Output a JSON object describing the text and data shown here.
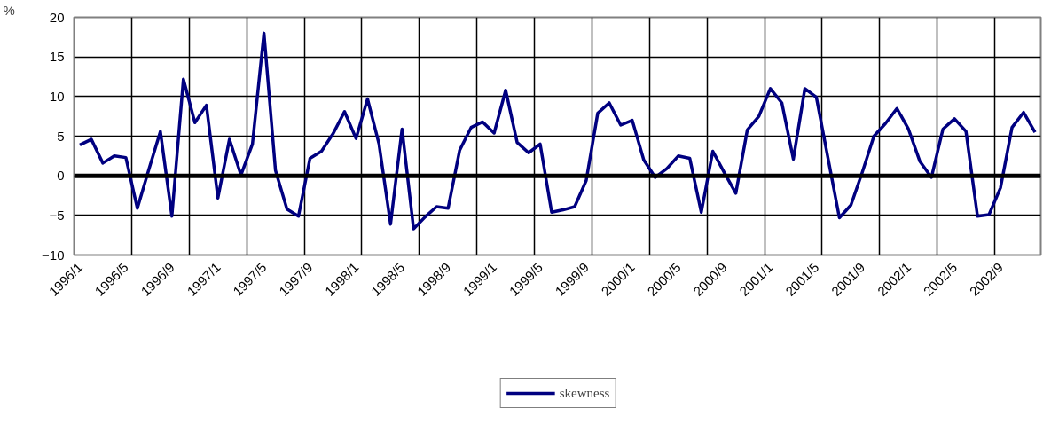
{
  "chart_data": {
    "type": "line",
    "ylabel": "%",
    "categories": [
      "1996/1",
      null,
      null,
      null,
      "1996/5",
      null,
      null,
      null,
      "1996/9",
      null,
      null,
      null,
      "1997/1",
      null,
      null,
      null,
      "1997/5",
      null,
      null,
      null,
      "1997/9",
      null,
      null,
      null,
      "1998/1",
      null,
      null,
      null,
      "1998/5",
      null,
      null,
      null,
      "1998/9",
      null,
      null,
      null,
      "1999/1",
      null,
      null,
      null,
      "1999/5",
      null,
      null,
      null,
      "1999/9",
      null,
      null,
      null,
      "2000/1",
      null,
      null,
      null,
      "2000/5",
      null,
      null,
      null,
      "2000/9",
      null,
      null,
      null,
      "2001/1",
      null,
      null,
      null,
      "2001/5",
      null,
      null,
      null,
      "2001/9",
      null,
      null,
      null,
      "2002/1",
      null,
      null,
      null,
      "2002/5",
      null,
      null,
      null,
      "2002/9",
      null,
      null,
      null
    ],
    "series": [
      {
        "name": "skewness",
        "color": "#000080",
        "values": [
          3.9,
          4.6,
          1.6,
          2.5,
          2.3,
          -4.1,
          0.8,
          5.6,
          -5.1,
          12.2,
          6.7,
          8.9,
          -2.8,
          4.6,
          0.1,
          4.0,
          18.0,
          0.7,
          -4.2,
          -5.1,
          2.2,
          3.1,
          5.3,
          8.1,
          4.7,
          9.7,
          4.0,
          -6.1,
          5.9,
          -6.7,
          -5.2,
          -3.9,
          -4.1,
          3.2,
          6.1,
          6.8,
          5.4,
          10.8,
          4.2,
          2.9,
          4.0,
          -4.6,
          -4.3,
          -3.9,
          -0.6,
          7.9,
          9.2,
          6.4,
          7.0,
          2.0,
          -0.2,
          0.9,
          2.5,
          2.2,
          -4.6,
          3.1,
          0.4,
          -2.2,
          5.8,
          7.5,
          11.0,
          9.2,
          2.1,
          11.0,
          9.9,
          2.3,
          -5.3,
          -3.7,
          0.5,
          5.0,
          6.6,
          8.5,
          5.9,
          1.8,
          -0.2,
          5.9,
          7.2,
          5.6,
          -5.1,
          -4.9,
          -1.5,
          6.1,
          8.0,
          5.5
        ]
      }
    ],
    "ylim": [
      -10,
      20
    ],
    "yticks": [
      -10,
      -5,
      0,
      5,
      10,
      15,
      20
    ],
    "ref_lines": [
      {
        "axis": "y",
        "value": 0,
        "color": "#000000"
      }
    ],
    "grid": true,
    "legend": "bottom",
    "marker": "none",
    "line_style": "solid"
  }
}
